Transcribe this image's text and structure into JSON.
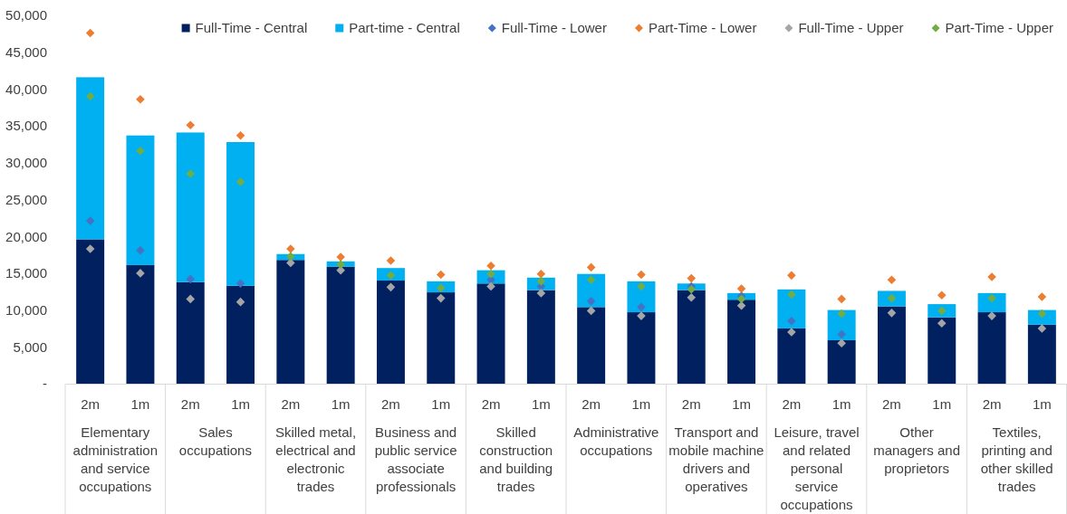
{
  "chart_data": {
    "type": "bar",
    "stacked": true,
    "legend": "top",
    "marker": "diamond",
    "categories": [
      "2m",
      "1m",
      "2m",
      "1m",
      "2m",
      "1m",
      "2m",
      "1m",
      "2m",
      "1m",
      "2m",
      "1m",
      "2m",
      "1m",
      "2m",
      "1m",
      "2m",
      "1m",
      "2m",
      "1m"
    ],
    "annotations": [
      "Elementary administration and service occupations",
      "Sales occupations",
      "Skilled metal, electrical and electronic trades",
      "Business and public service associate professionals",
      "Skilled construction and building trades",
      "Administrative occupations",
      "Transport and mobile machine drivers and operatives",
      "Leisure, travel and related personal service occupations",
      "Other managers and proprietors",
      "Textiles, printing and other skilled trades"
    ],
    "ylim": [
      0,
      50000
    ],
    "yticks": [
      {
        "value": 0,
        "label": "-"
      },
      {
        "value": 5000,
        "label": "5,000"
      },
      {
        "value": 10000,
        "label": "10,000"
      },
      {
        "value": 15000,
        "label": "15,000"
      },
      {
        "value": 20000,
        "label": "20,000"
      },
      {
        "value": 25000,
        "label": "25,000"
      },
      {
        "value": 30000,
        "label": "30,000"
      },
      {
        "value": 35000,
        "label": "35,000"
      },
      {
        "value": 40000,
        "label": "40,000"
      },
      {
        "value": 45000,
        "label": "45,000"
      },
      {
        "value": 50000,
        "label": "50,000"
      }
    ],
    "series": [
      {
        "name": "Full-Time - Central",
        "color": "#002060",
        "values": [
          19600,
          16100,
          13800,
          13300,
          16800,
          15900,
          14000,
          12400,
          13600,
          12700,
          10400,
          9700,
          12700,
          11400,
          7500,
          5900,
          10500,
          9000,
          9700,
          8000
        ]
      },
      {
        "name": "Part-time - Central",
        "color": "#00b0f0",
        "values": [
          22000,
          17600,
          20300,
          19500,
          800,
          700,
          1700,
          1500,
          1800,
          1700,
          4500,
          4200,
          900,
          900,
          5300,
          4100,
          2100,
          1800,
          2600,
          2000
        ]
      },
      {
        "name": "Full-Time - Lower",
        "type": "scatter",
        "color": "#4472c4",
        "values": [
          22100,
          18100,
          14200,
          13600,
          null,
          null,
          null,
          null,
          14100,
          13200,
          11200,
          10400,
          13200,
          11900,
          8500,
          6700,
          null,
          null,
          null,
          null
        ]
      },
      {
        "name": "Part-Time - Lower",
        "type": "scatter",
        "color": "#ed7d31",
        "values": [
          47600,
          38600,
          35100,
          33700,
          18300,
          17200,
          16700,
          14800,
          16000,
          14900,
          15800,
          14800,
          14300,
          12900,
          14700,
          11500,
          14100,
          12000,
          14500,
          11800
        ]
      },
      {
        "name": "Full-Time - Upper",
        "type": "scatter",
        "color": "#a5a5a5",
        "values": [
          18300,
          15000,
          11500,
          11100,
          16400,
          15400,
          13100,
          11600,
          13200,
          12300,
          9900,
          9200,
          11700,
          10600,
          7000,
          5500,
          9600,
          8200,
          9200,
          7500
        ]
      },
      {
        "name": "Part-Time - Upper",
        "type": "scatter",
        "color": "#70ad47",
        "values": [
          39000,
          31600,
          28500,
          27400,
          17300,
          16200,
          14700,
          13000,
          14900,
          13900,
          14100,
          13200,
          12800,
          11500,
          12100,
          9500,
          11600,
          9900,
          11600,
          9500
        ]
      }
    ]
  }
}
